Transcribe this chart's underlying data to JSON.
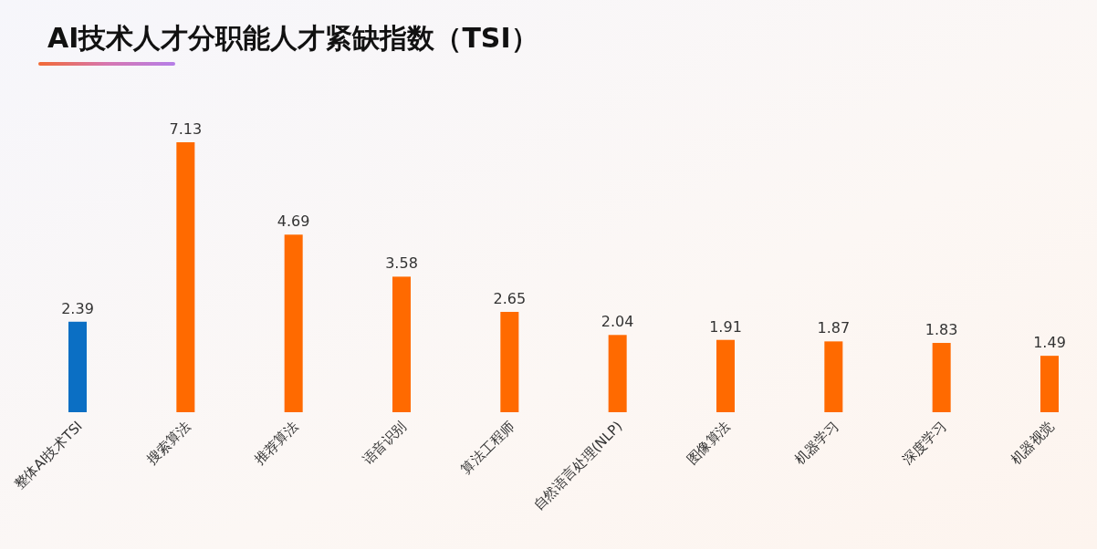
{
  "chart_data": {
    "type": "bar",
    "title": "AI技术人才分职能人才紧缺指数（TSI）",
    "categories": [
      "整体AI技术TSI",
      "搜索算法",
      "推荐算法",
      "语音识别",
      "算法工程师",
      "自然语言处理(NLP)",
      "图像算法",
      "机器学习",
      "深度学习",
      "机器视觉"
    ],
    "values": [
      2.39,
      7.13,
      4.69,
      3.58,
      2.65,
      2.04,
      1.91,
      1.87,
      1.83,
      1.49
    ],
    "colors": [
      "#0b6fc4",
      "#ff6a00",
      "#ff6a00",
      "#ff6a00",
      "#ff6a00",
      "#ff6a00",
      "#ff6a00",
      "#ff6a00",
      "#ff6a00",
      "#ff6a00"
    ],
    "data_labels": true
  }
}
